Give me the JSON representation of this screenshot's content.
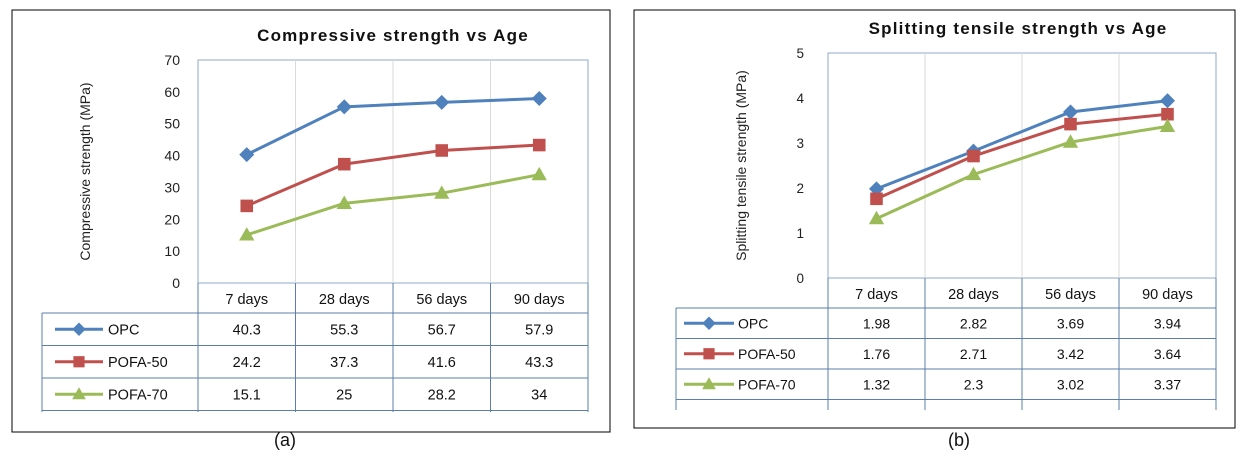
{
  "chart_data": [
    {
      "type": "line",
      "panel_label": "(a)",
      "title": "Compressive strength vs Age",
      "xlabel": "",
      "ylabel": "Compressive strength (MPa)",
      "ylim": [
        0,
        70
      ],
      "yticks": [
        0,
        10,
        20,
        30,
        40,
        50,
        60,
        70
      ],
      "categories": [
        "7 days",
        "28 days",
        "56 days",
        "90 days"
      ],
      "series": [
        {
          "name": "OPC",
          "color": "#4F81BD",
          "marker": "diamond",
          "values": [
            40.3,
            55.3,
            56.7,
            57.9
          ],
          "labels": [
            "40.3",
            "55.3",
            "56.7",
            "57.9"
          ]
        },
        {
          "name": "POFA-50",
          "color": "#C0504D",
          "marker": "square",
          "values": [
            24.2,
            37.3,
            41.6,
            43.3
          ],
          "labels": [
            "24.2",
            "37.3",
            "41.6",
            "43.3"
          ]
        },
        {
          "name": "POFA-70",
          "color": "#9BBB59",
          "marker": "triangle",
          "values": [
            15.1,
            25,
            28.2,
            34
          ],
          "labels": [
            "15.1",
            "25",
            "28.2",
            "34"
          ]
        }
      ],
      "grid": "vertical",
      "legend": "data-table"
    },
    {
      "type": "line",
      "panel_label": "(b)",
      "title": "Splitting tensile strength vs Age",
      "xlabel": "",
      "ylabel": "Splitting tensile strength (MPa)",
      "ylim": [
        0,
        5
      ],
      "yticks": [
        0,
        1,
        2,
        3,
        4,
        5
      ],
      "categories": [
        "7 days",
        "28 days",
        "56 days",
        "90 days"
      ],
      "series": [
        {
          "name": "OPC",
          "color": "#4F81BD",
          "marker": "diamond",
          "values": [
            1.98,
            2.82,
            3.69,
            3.94
          ],
          "labels": [
            "1.98",
            "2.82",
            "3.69",
            "3.94"
          ]
        },
        {
          "name": "POFA-50",
          "color": "#C0504D",
          "marker": "square",
          "values": [
            1.76,
            2.71,
            3.42,
            3.64
          ],
          "labels": [
            "1.76",
            "2.71",
            "3.42",
            "3.64"
          ]
        },
        {
          "name": "POFA-70",
          "color": "#9BBB59",
          "marker": "triangle",
          "values": [
            1.32,
            2.3,
            3.02,
            3.37
          ],
          "labels": [
            "1.32",
            "2.3",
            "3.02",
            "3.37"
          ]
        }
      ],
      "grid": "vertical",
      "legend": "data-table"
    }
  ]
}
